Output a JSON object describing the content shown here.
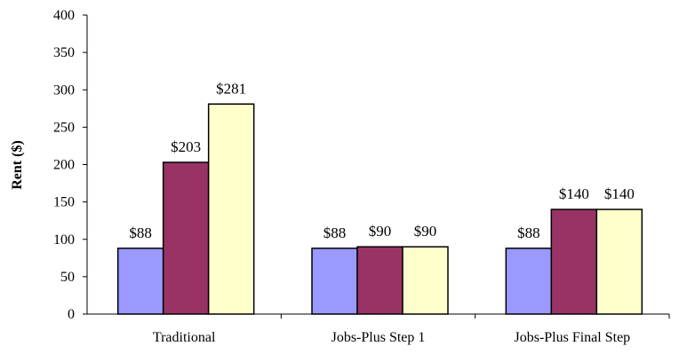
{
  "chart_data": {
    "type": "bar",
    "title": "",
    "xlabel": "",
    "ylabel": "Rent ($)",
    "ylim": [
      0,
      400
    ],
    "yticks": [
      0,
      50,
      100,
      150,
      200,
      250,
      300,
      350,
      400
    ],
    "grid": false,
    "legend": "none",
    "categories": [
      "Traditional",
      "Jobs-Plus Step 1",
      "Jobs-Plus Final Step"
    ],
    "series": [
      {
        "values": [
          88,
          88,
          88
        ],
        "labels": [
          "$88",
          "$88",
          "$88"
        ],
        "color": "#9999ff"
      },
      {
        "values": [
          203,
          90,
          140
        ],
        "labels": [
          "$203",
          "$90",
          "$140"
        ],
        "color": "#993366"
      },
      {
        "values": [
          281,
          90,
          140
        ],
        "labels": [
          "$281",
          "$90",
          "$140"
        ],
        "color": "#ffffcc"
      }
    ]
  }
}
